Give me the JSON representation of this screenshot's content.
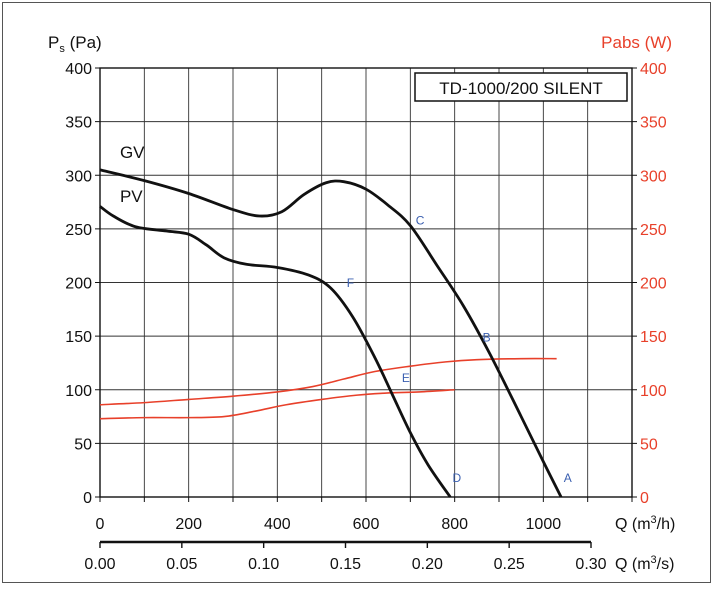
{
  "chart_data": {
    "type": "line",
    "legend_box": "TD-1000/200 SILENT",
    "y_left": {
      "label_main": "P",
      "label_sub": "s",
      "label_unit": " (Pa)",
      "range": [
        0,
        400
      ],
      "ticks": [
        "0",
        "50",
        "100",
        "150",
        "200",
        "250",
        "300",
        "350",
        "400"
      ]
    },
    "y_right": {
      "label": "Pabs (W)",
      "range": [
        0,
        400
      ],
      "ticks": [
        "0",
        "50",
        "100",
        "150",
        "200",
        "250",
        "300",
        "350",
        "400"
      ],
      "color": "#e8402a"
    },
    "x_primary": {
      "label_base": "Q (m",
      "label_sup": "3",
      "label_end": "/h)",
      "range": [
        0,
        1200
      ],
      "ticks": [
        "0",
        "200",
        "400",
        "600",
        "800",
        "1000"
      ]
    },
    "x_secondary": {
      "label_base": "Q (m",
      "label_sup": "3",
      "label_end": "/s)",
      "ticks": [
        "0.00",
        "0.05",
        "0.10",
        "0.15",
        "0.20",
        "0.25",
        "0.30"
      ]
    },
    "grid": true,
    "pressure_series": [
      {
        "name": "GV",
        "color": "#111111",
        "points": [
          [
            0,
            305
          ],
          [
            100,
            295
          ],
          [
            200,
            283
          ],
          [
            300,
            268
          ],
          [
            360,
            262
          ],
          [
            410,
            266
          ],
          [
            460,
            282
          ],
          [
            510,
            293
          ],
          [
            550,
            294
          ],
          [
            600,
            287
          ],
          [
            650,
            272
          ],
          [
            700,
            253
          ],
          [
            760,
            216
          ],
          [
            820,
            178
          ],
          [
            880,
            133
          ],
          [
            950,
            75
          ],
          [
            1000,
            33
          ],
          [
            1040,
            0
          ]
        ]
      },
      {
        "name": "PV",
        "color": "#111111",
        "points": [
          [
            0,
            271
          ],
          [
            30,
            262
          ],
          [
            80,
            252
          ],
          [
            150,
            248
          ],
          [
            200,
            245
          ],
          [
            240,
            235
          ],
          [
            280,
            223
          ],
          [
            330,
            217
          ],
          [
            400,
            214
          ],
          [
            470,
            207
          ],
          [
            520,
            195
          ],
          [
            570,
            168
          ],
          [
            620,
            130
          ],
          [
            660,
            95
          ],
          [
            700,
            60
          ],
          [
            740,
            30
          ],
          [
            790,
            0
          ]
        ]
      }
    ],
    "power_series": [
      {
        "color": "#e8402a",
        "points": [
          [
            0,
            86
          ],
          [
            100,
            88
          ],
          [
            200,
            91
          ],
          [
            300,
            94
          ],
          [
            400,
            98
          ],
          [
            480,
            103
          ],
          [
            550,
            110
          ],
          [
            620,
            117
          ],
          [
            700,
            122
          ],
          [
            780,
            126
          ],
          [
            850,
            128
          ],
          [
            950,
            129
          ],
          [
            1030,
            129
          ]
        ]
      },
      {
        "color": "#e8402a",
        "points": [
          [
            0,
            73
          ],
          [
            100,
            74
          ],
          [
            200,
            74
          ],
          [
            280,
            75
          ],
          [
            350,
            80
          ],
          [
            420,
            86
          ],
          [
            500,
            91
          ],
          [
            580,
            95
          ],
          [
            650,
            97
          ],
          [
            720,
            98
          ],
          [
            800,
            100
          ]
        ]
      }
    ],
    "point_labels": [
      {
        "text": "A",
        "x": 1055,
        "y": 14
      },
      {
        "text": "B",
        "x": 872,
        "y": 145
      },
      {
        "text": "C",
        "x": 722,
        "y": 254
      },
      {
        "text": "D",
        "x": 805,
        "y": 14
      },
      {
        "text": "E",
        "x": 690,
        "y": 107
      },
      {
        "text": "F",
        "x": 565,
        "y": 196
      }
    ],
    "curve_labels": [
      {
        "text": "GV",
        "x": 45,
        "y": 316
      },
      {
        "text": "PV",
        "x": 45,
        "y": 275
      }
    ]
  }
}
